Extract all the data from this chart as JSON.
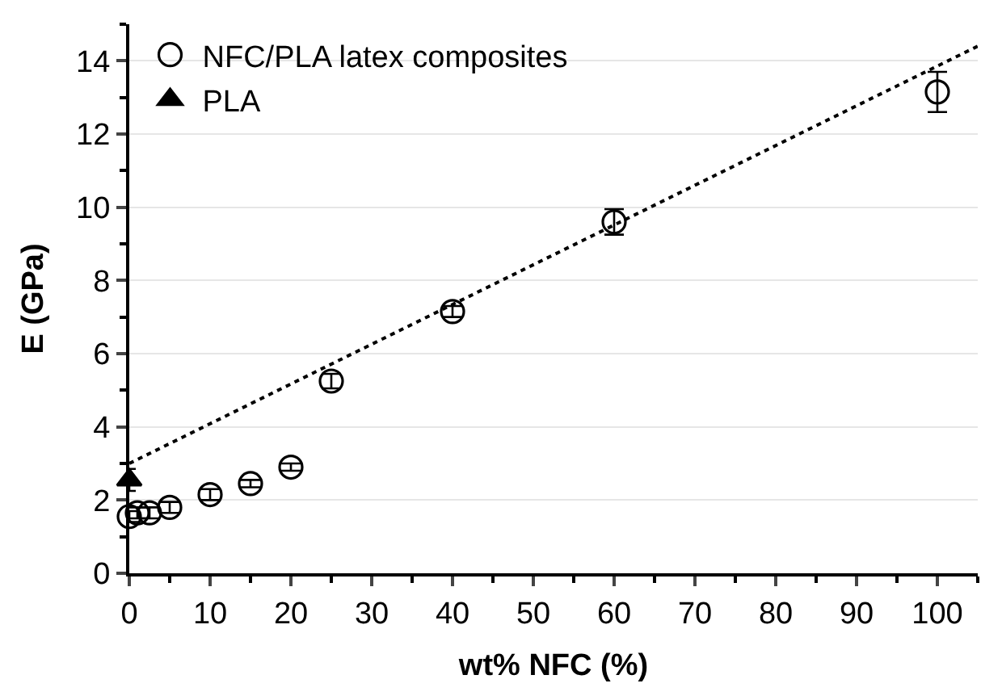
{
  "chart_data": {
    "type": "scatter",
    "xlabel": "wt% NFC (%)",
    "ylabel": "E (GPa)",
    "xlim": [
      0,
      105
    ],
    "xticks": [
      0,
      10,
      20,
      30,
      40,
      50,
      60,
      70,
      80,
      90,
      100
    ],
    "ylim": [
      0,
      15
    ],
    "yticks": [
      0,
      2,
      4,
      6,
      8,
      10,
      12,
      14
    ],
    "grid": "y",
    "legend": "top left",
    "series": [
      {
        "name": "NFC/PLA latex composites",
        "color": "#000000",
        "marker": "circle",
        "x": [
          0,
          1,
          2.5,
          5,
          10,
          15,
          20,
          25,
          40,
          60,
          100
        ],
        "values": [
          1.55,
          1.65,
          1.65,
          1.8,
          2.15,
          2.45,
          2.9,
          5.25,
          7.15,
          9.6,
          13.15
        ],
        "errors": [
          0.15,
          0.15,
          0.15,
          0.15,
          0.15,
          0.1,
          0.1,
          0.2,
          0.15,
          0.35,
          0.55
        ]
      },
      {
        "type": "line",
        "color": "#000000",
        "line_style": "dotted",
        "marker": "none",
        "x": [
          0,
          105
        ],
        "values": [
          3.0,
          14.4
        ]
      },
      {
        "name": "PLA",
        "color": "#000000",
        "marker": "triangle",
        "x": [
          0
        ],
        "values": [
          2.55
        ],
        "errors": [
          0.3
        ]
      }
    ]
  }
}
